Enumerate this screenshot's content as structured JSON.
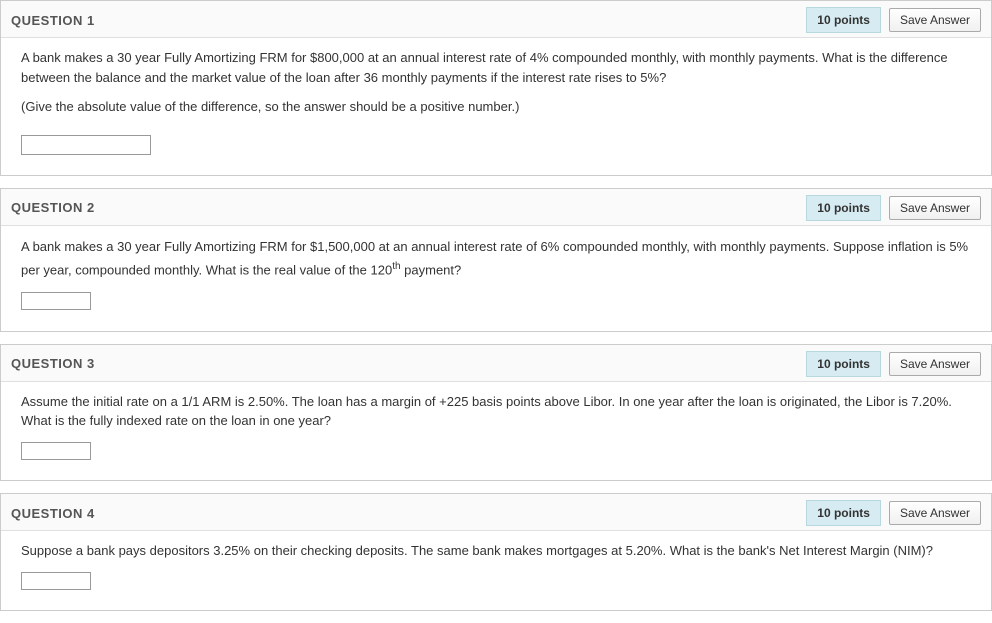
{
  "questions": [
    {
      "title": "QUESTION 1",
      "points": "10 points",
      "saveLabel": "Save Answer",
      "text1": "A bank makes a 30 year Fully Amortizing FRM for $800,000 at an annual interest rate of 4% compounded monthly, with monthly payments. What is the difference between the balance and the market value of the loan after 36 monthly payments if the interest rate rises to 5%?",
      "note": "(Give the absolute value of the difference, so the answer should be a positive number.)",
      "inputSize": "large"
    },
    {
      "title": "QUESTION 2",
      "points": "10 points",
      "saveLabel": "Save Answer",
      "text1_a": "A bank makes a 30 year Fully Amortizing FRM for $1,500,000 at an annual interest rate of 6% compounded monthly, with monthly payments. Suppose inflation is 5% per year, compounded monthly. What is the real value of the 120",
      "text1_sup": "th",
      "text1_b": " payment?",
      "inputSize": "small"
    },
    {
      "title": "QUESTION 3",
      "points": "10 points",
      "saveLabel": "Save Answer",
      "text1": "Assume the initial rate on a 1/1 ARM is 2.50%. The loan has a margin of +225 basis points above Libor. In one year after the loan is originated, the Libor is 7.20%. What is the fully indexed rate on the loan in one year?",
      "inputSize": "small"
    },
    {
      "title": "QUESTION 4",
      "points": "10 points",
      "saveLabel": "Save Answer",
      "text1": "Suppose a bank pays depositors 3.25% on their checking deposits. The same bank makes mortgages at 5.20%. What is the bank's Net Interest Margin (NIM)?",
      "inputSize": "small"
    }
  ]
}
